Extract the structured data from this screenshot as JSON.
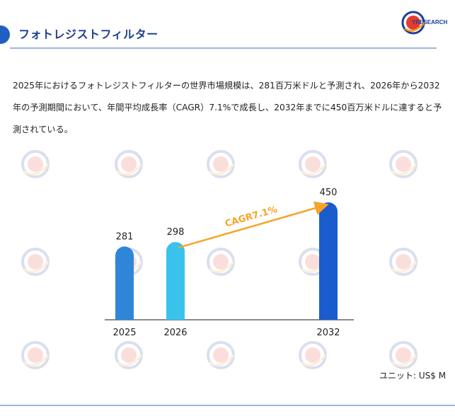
{
  "header": {
    "title": "フォトレジストフィルター",
    "logo_text": "YRESEARCH",
    "logo_icon": "qyresearch-globe-logo"
  },
  "description": "2025年におけるフォトレジストフィルターの世界市場規模は、281百万米ドルと予測され、2026年から2032年の予測期間において、年間平均成長率（CAGR）7.1%で成長し、2032年までに450百万米ドルに達すると予測されている。",
  "unit_label": "ユニット: US$ M",
  "watermark_text": "QYRESEARCH",
  "colors": {
    "bar_2025": "#2f86d9",
    "bar_2026": "#39c3ec",
    "bar_2032": "#1a5ccd",
    "cagr_arrow": "#f7a325",
    "accent": "#1f5fbf"
  },
  "chart_data": {
    "type": "bar",
    "categories": [
      "2025",
      "2026",
      "2032"
    ],
    "values": [
      281,
      298,
      450
    ],
    "data_labels": [
      "281",
      "298",
      "450"
    ],
    "annotation": {
      "text": "CAGR7.1%",
      "from": "2026",
      "to": "2032"
    },
    "title": "",
    "xlabel": "",
    "ylabel": "",
    "grid": false
  }
}
